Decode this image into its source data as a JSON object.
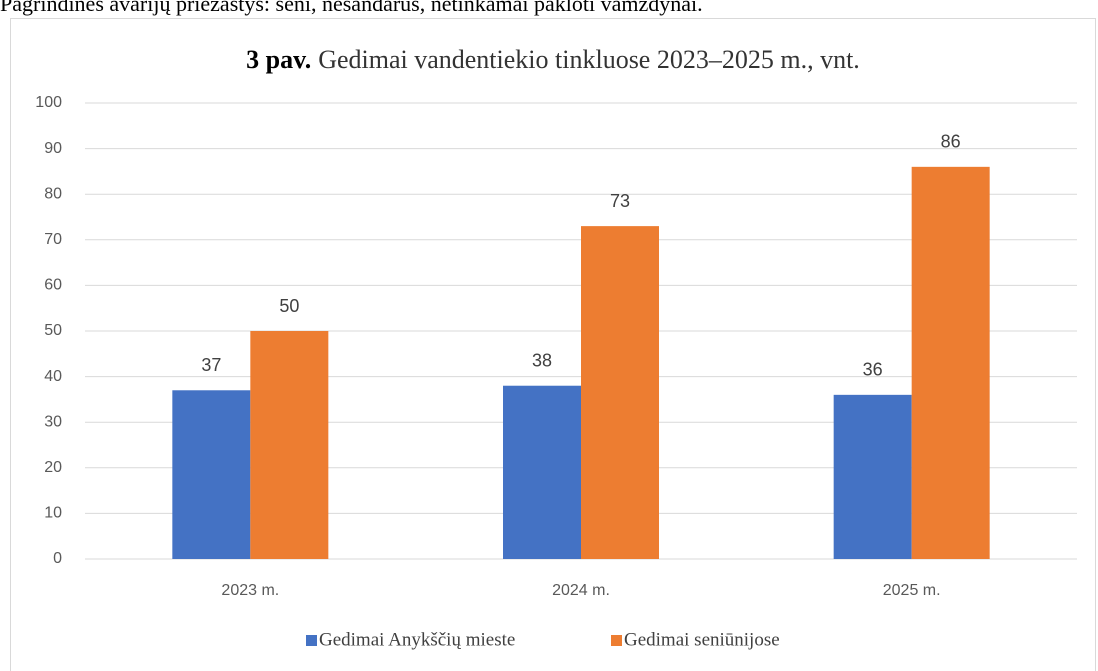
{
  "page_text": "Pagrindinės avarijų priežastys: seni, nesandarūs, netinkamai pakloti vamzdynai.",
  "chart_data": {
    "type": "bar",
    "figure_label": "3 pav.",
    "title": "Gedimai vandentiekio tinkluose 2023–2025 m., vnt.",
    "categories": [
      "2023 m.",
      "2024 m.",
      "2025 m."
    ],
    "series": [
      {
        "name": "Gedimai Anykščių mieste",
        "color": "#4472c4",
        "values": [
          37,
          38,
          36
        ]
      },
      {
        "name": "Gedimai seniūnijose",
        "color": "#ed7d31",
        "values": [
          50,
          73,
          86
        ]
      }
    ],
    "ylim": [
      0,
      100
    ],
    "yticks": [
      0,
      10,
      20,
      30,
      40,
      50,
      60,
      70,
      80,
      90,
      100
    ],
    "grid": true,
    "legend": "bottom"
  }
}
